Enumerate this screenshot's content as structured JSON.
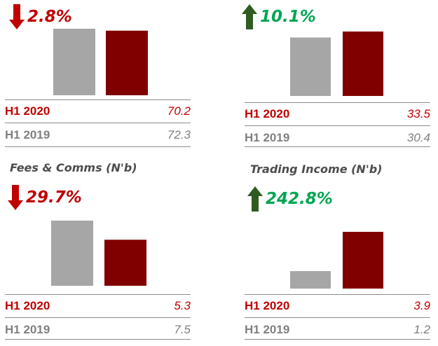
{
  "colors": {
    "current": "#800000",
    "prior": "#a6a6a6",
    "down": "#c00000",
    "up": "#00a651",
    "up_arrow": "#2f5c20",
    "label_current": "#c00000",
    "label_prior": "#808080"
  },
  "chart_data": [
    {
      "type": "bar",
      "title": "",
      "change": {
        "direction": "down",
        "text": "2.8%"
      },
      "series": [
        {
          "name": "H1 2019",
          "values": [
            72.3
          ]
        },
        {
          "name": "H1 2020",
          "values": [
            70.2
          ]
        }
      ],
      "rows": [
        {
          "label": "H1 2020",
          "value": "70.2"
        },
        {
          "label": "H1 2019",
          "value": "72.3"
        }
      ]
    },
    {
      "type": "bar",
      "title": "",
      "change": {
        "direction": "up",
        "text": "10.1%"
      },
      "series": [
        {
          "name": "H1 2019",
          "values": [
            30.4
          ]
        },
        {
          "name": "H1 2020",
          "values": [
            33.5
          ]
        }
      ],
      "rows": [
        {
          "label": "H1 2020",
          "value": "33.5"
        },
        {
          "label": "H1 2019",
          "value": "30.4"
        }
      ]
    },
    {
      "type": "bar",
      "title": "Fees & Comms (N'b)",
      "change": {
        "direction": "down",
        "text": "29.7%"
      },
      "series": [
        {
          "name": "H1 2019",
          "values": [
            7.5
          ]
        },
        {
          "name": "H1 2020",
          "values": [
            5.3
          ]
        }
      ],
      "rows": [
        {
          "label": "H1 2020",
          "value": "5.3"
        },
        {
          "label": "H1 2019",
          "value": "7.5"
        }
      ]
    },
    {
      "type": "bar",
      "title": "Trading Income (N'b)",
      "change": {
        "direction": "up",
        "text": "242.8%"
      },
      "series": [
        {
          "name": "H1 2019",
          "values": [
            1.2
          ]
        },
        {
          "name": "H1 2020",
          "values": [
            3.9
          ]
        }
      ],
      "rows": [
        {
          "label": "H1 2020",
          "value": "3.9"
        },
        {
          "label": "H1 2019",
          "value": "1.2"
        }
      ]
    }
  ]
}
